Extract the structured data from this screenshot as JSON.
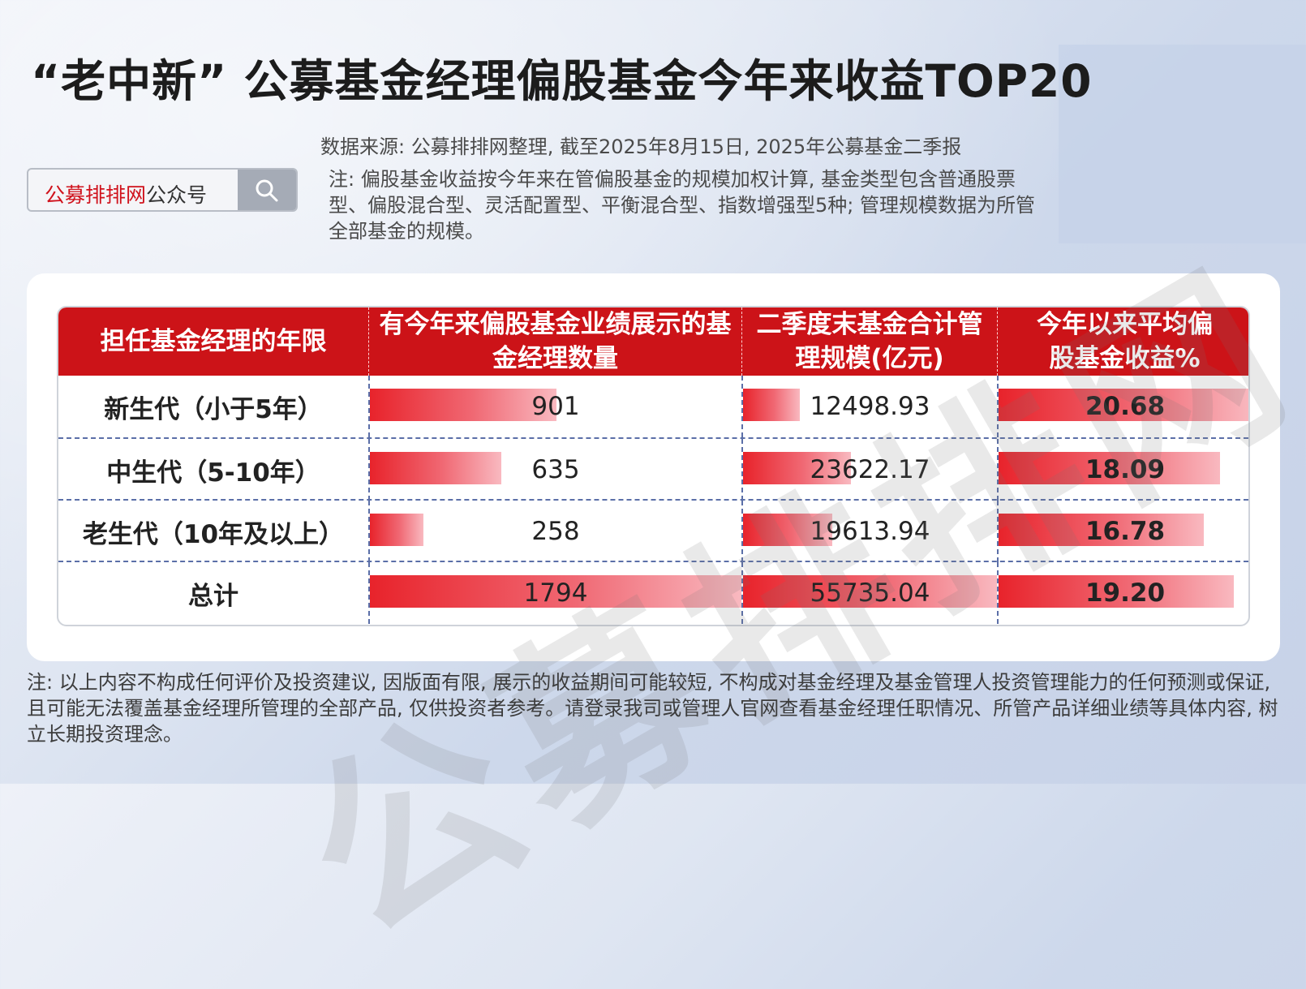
{
  "title": "“老中新” 公募基金经理偏股基金今年来收益TOP20",
  "source": "数据来源: 公募排排网整理, 截至2025年8月15日, 2025年公募基金二季报",
  "note": "注: 偏股基金收益按今年来在管偏股基金的规模加权计算, 基金类型包含普通股票型、偏股混合型、灵活配置型、平衡混合型、指数增强型5种; 管理规模数据为所管全部基金的规模。",
  "search": {
    "brand": "公募排排网",
    "suffix": "公众号",
    "icon": "search-icon"
  },
  "watermark": "公募排排网",
  "table": {
    "headers": [
      "担任基金经理的年限",
      "有今年来偏股基金业绩展示的基金经理数量",
      "二季度末基金合计管理规模(亿元)",
      "今年以来平均偏股基金收益%"
    ],
    "rows": [
      {
        "label": "新生代（小于5年）",
        "count": "901",
        "scale": "12498.93",
        "return": "20.68"
      },
      {
        "label": "中生代（5-10年）",
        "count": "635",
        "scale": "23622.17",
        "return": "18.09"
      },
      {
        "label": "老生代（10年及以上）",
        "count": "258",
        "scale": "19613.94",
        "return": "16.78"
      },
      {
        "label": "总计",
        "count": "1794",
        "scale": "55735.04",
        "return": "19.20"
      }
    ],
    "bar_color": "#e8232b"
  },
  "chart_data": {
    "type": "table",
    "columns": [
      "担任基金经理的年限",
      "有今年来偏股基金业绩展示的基金经理数量",
      "二季度末基金合计管理规模(亿元)",
      "今年以来平均偏股基金收益%"
    ],
    "rows": [
      [
        "新生代（小于5年）",
        901,
        12498.93,
        20.68
      ],
      [
        "中生代（5-10年）",
        635,
        23622.17,
        18.09
      ],
      [
        "老生代（10年及以上）",
        258,
        19613.94,
        16.78
      ],
      [
        "总计",
        1794,
        55735.04,
        19.2
      ]
    ]
  },
  "footer": "注: 以上内容不构成任何评价及投资建议, 因版面有限, 展示的收益期间可能较短, 不构成对基金经理及基金管理人投资管理能力的任何预测或保证, 且可能无法覆盖基金经理所管理的全部产品, 仅供投资者参考。请登录我司或管理人官网查看基金经理任职情况、所管产品详细业绩等具体内容, 树立长期投资理念。"
}
